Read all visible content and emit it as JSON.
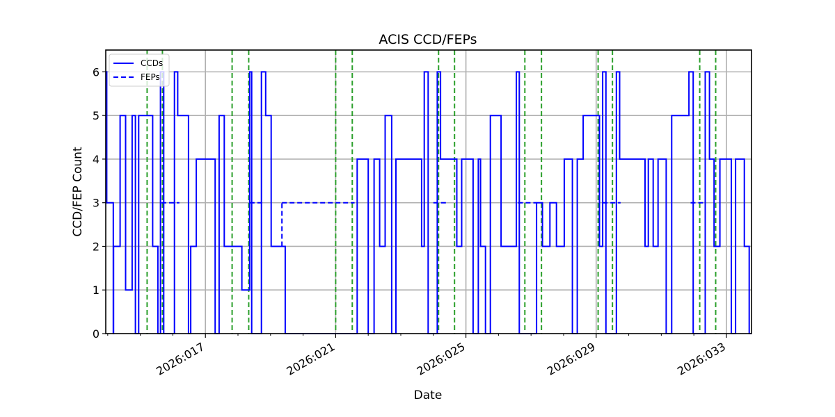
{
  "chart_data": {
    "type": "line",
    "title": "ACIS CCD/FEPs",
    "xlabel": "Date",
    "ylabel": "CCD/FEP Count",
    "ylim": [
      0,
      6.5
    ],
    "xlim_day": [
      13.94,
      33.77
    ],
    "yticks": [
      0,
      1,
      2,
      3,
      4,
      5,
      6
    ],
    "xticks": [
      {
        "day": 17,
        "label": "2026:017"
      },
      {
        "day": 21,
        "label": "2026:021"
      },
      {
        "day": 25,
        "label": "2026:025"
      },
      {
        "day": 29,
        "label": "2026:029"
      },
      {
        "day": 33,
        "label": "2026:033"
      }
    ],
    "minor_xticks": [
      14,
      15,
      16,
      18,
      19,
      20,
      22,
      23,
      24,
      26,
      27,
      28,
      30,
      31,
      32
    ],
    "grid": true,
    "legend": {
      "position": "upper left",
      "entries": [
        {
          "label": "CCDs",
          "style": "solid",
          "color": "#0000ff"
        },
        {
          "label": "FEPs",
          "style": "dashed",
          "color": "#0000ff"
        }
      ]
    },
    "vlines": {
      "color": "#2ca02c",
      "style": "dashed",
      "days": [
        15.21,
        15.68,
        17.82,
        18.33,
        21.0,
        21.51,
        24.16,
        24.65,
        26.81,
        27.32,
        29.06,
        29.5,
        32.18,
        32.67
      ]
    },
    "series": [
      {
        "name": "CCDs",
        "style": "solid",
        "color": "#0000ff",
        "steps": [
          [
            13.94,
            6
          ],
          [
            13.97,
            3
          ],
          [
            14.17,
            3
          ],
          [
            14.17,
            0
          ],
          [
            14.18,
            2
          ],
          [
            14.38,
            2
          ],
          [
            14.38,
            5
          ],
          [
            14.55,
            5
          ],
          [
            14.55,
            1
          ],
          [
            14.75,
            1
          ],
          [
            14.75,
            5
          ],
          [
            14.85,
            5
          ],
          [
            14.85,
            0
          ],
          [
            14.95,
            5
          ],
          [
            15.38,
            5
          ],
          [
            15.38,
            2
          ],
          [
            15.54,
            2
          ],
          [
            15.54,
            0
          ],
          [
            15.62,
            6
          ],
          [
            15.72,
            6
          ],
          [
            15.72,
            0
          ],
          [
            16.05,
            6
          ],
          [
            16.15,
            6
          ],
          [
            16.15,
            5
          ],
          [
            16.48,
            5
          ],
          [
            16.48,
            0
          ],
          [
            16.55,
            2
          ],
          [
            16.72,
            2
          ],
          [
            16.72,
            4
          ],
          [
            17.3,
            4
          ],
          [
            17.3,
            0
          ],
          [
            17.42,
            5
          ],
          [
            17.58,
            5
          ],
          [
            17.58,
            2
          ],
          [
            18.12,
            2
          ],
          [
            18.12,
            1
          ],
          [
            18.36,
            1
          ],
          [
            18.36,
            6
          ],
          [
            18.42,
            6
          ],
          [
            18.42,
            0
          ],
          [
            18.72,
            0
          ],
          [
            18.72,
            6
          ],
          [
            18.85,
            6
          ],
          [
            18.85,
            5
          ],
          [
            19.02,
            5
          ],
          [
            19.02,
            2
          ],
          [
            19.45,
            2
          ],
          [
            19.45,
            0
          ],
          [
            21.66,
            0
          ],
          [
            21.66,
            4
          ],
          [
            22.0,
            4
          ],
          [
            22.0,
            0
          ],
          [
            22.18,
            4
          ],
          [
            22.35,
            4
          ],
          [
            22.35,
            2
          ],
          [
            22.52,
            2
          ],
          [
            22.52,
            5
          ],
          [
            22.72,
            5
          ],
          [
            22.72,
            0
          ],
          [
            22.85,
            4
          ],
          [
            23.64,
            4
          ],
          [
            23.64,
            2
          ],
          [
            23.72,
            2
          ],
          [
            23.72,
            6
          ],
          [
            23.84,
            6
          ],
          [
            23.84,
            0
          ],
          [
            24.12,
            6
          ],
          [
            24.22,
            6
          ],
          [
            24.22,
            4
          ],
          [
            24.72,
            4
          ],
          [
            24.72,
            2
          ],
          [
            24.87,
            2
          ],
          [
            24.87,
            4
          ],
          [
            25.22,
            4
          ],
          [
            25.22,
            0
          ],
          [
            25.38,
            4
          ],
          [
            25.45,
            4
          ],
          [
            25.45,
            2
          ],
          [
            25.6,
            2
          ],
          [
            25.6,
            0
          ],
          [
            25.75,
            5
          ],
          [
            26.08,
            5
          ],
          [
            26.08,
            2
          ],
          [
            26.55,
            2
          ],
          [
            26.55,
            6
          ],
          [
            26.64,
            6
          ],
          [
            26.64,
            0
          ],
          [
            27.17,
            0
          ],
          [
            27.17,
            3
          ],
          [
            27.35,
            3
          ],
          [
            27.35,
            2
          ],
          [
            27.58,
            2
          ],
          [
            27.58,
            3
          ],
          [
            27.78,
            3
          ],
          [
            27.78,
            2
          ],
          [
            28.02,
            2
          ],
          [
            28.02,
            4
          ],
          [
            28.27,
            4
          ],
          [
            28.27,
            0
          ],
          [
            28.42,
            4
          ],
          [
            28.6,
            4
          ],
          [
            28.6,
            5
          ],
          [
            29.1,
            5
          ],
          [
            29.1,
            2
          ],
          [
            29.2,
            2
          ],
          [
            29.2,
            6
          ],
          [
            29.3,
            6
          ],
          [
            29.3,
            0
          ],
          [
            29.62,
            6
          ],
          [
            29.72,
            6
          ],
          [
            29.72,
            4
          ],
          [
            30.5,
            4
          ],
          [
            30.5,
            2
          ],
          [
            30.6,
            2
          ],
          [
            30.6,
            4
          ],
          [
            30.75,
            4
          ],
          [
            30.75,
            2
          ],
          [
            30.9,
            2
          ],
          [
            30.9,
            4
          ],
          [
            31.15,
            4
          ],
          [
            31.15,
            0
          ],
          [
            31.32,
            5
          ],
          [
            31.85,
            5
          ],
          [
            31.85,
            6
          ],
          [
            31.98,
            6
          ],
          [
            31.98,
            0
          ],
          [
            32.35,
            0
          ],
          [
            32.35,
            6
          ],
          [
            32.48,
            6
          ],
          [
            32.48,
            4
          ],
          [
            32.62,
            4
          ],
          [
            32.62,
            2
          ],
          [
            32.8,
            2
          ],
          [
            32.8,
            4
          ],
          [
            33.15,
            4
          ],
          [
            33.15,
            0
          ],
          [
            33.28,
            4
          ],
          [
            33.55,
            4
          ],
          [
            33.55,
            2
          ],
          [
            33.7,
            2
          ],
          [
            33.7,
            0
          ],
          [
            33.77,
            0
          ]
        ]
      },
      {
        "name": "FEPs",
        "style": "dashed",
        "color": "#0000ff",
        "segments_value_3": [
          [
            15.65,
            16.2
          ],
          [
            18.36,
            18.78
          ],
          [
            19.35,
            21.58
          ],
          [
            24.0,
            24.4
          ],
          [
            26.6,
            27.17
          ],
          [
            29.2,
            29.75
          ],
          [
            31.9,
            32.35
          ]
        ],
        "note": "FEPs otherwise track CCD counts (overlaid by solid line)"
      }
    ]
  }
}
